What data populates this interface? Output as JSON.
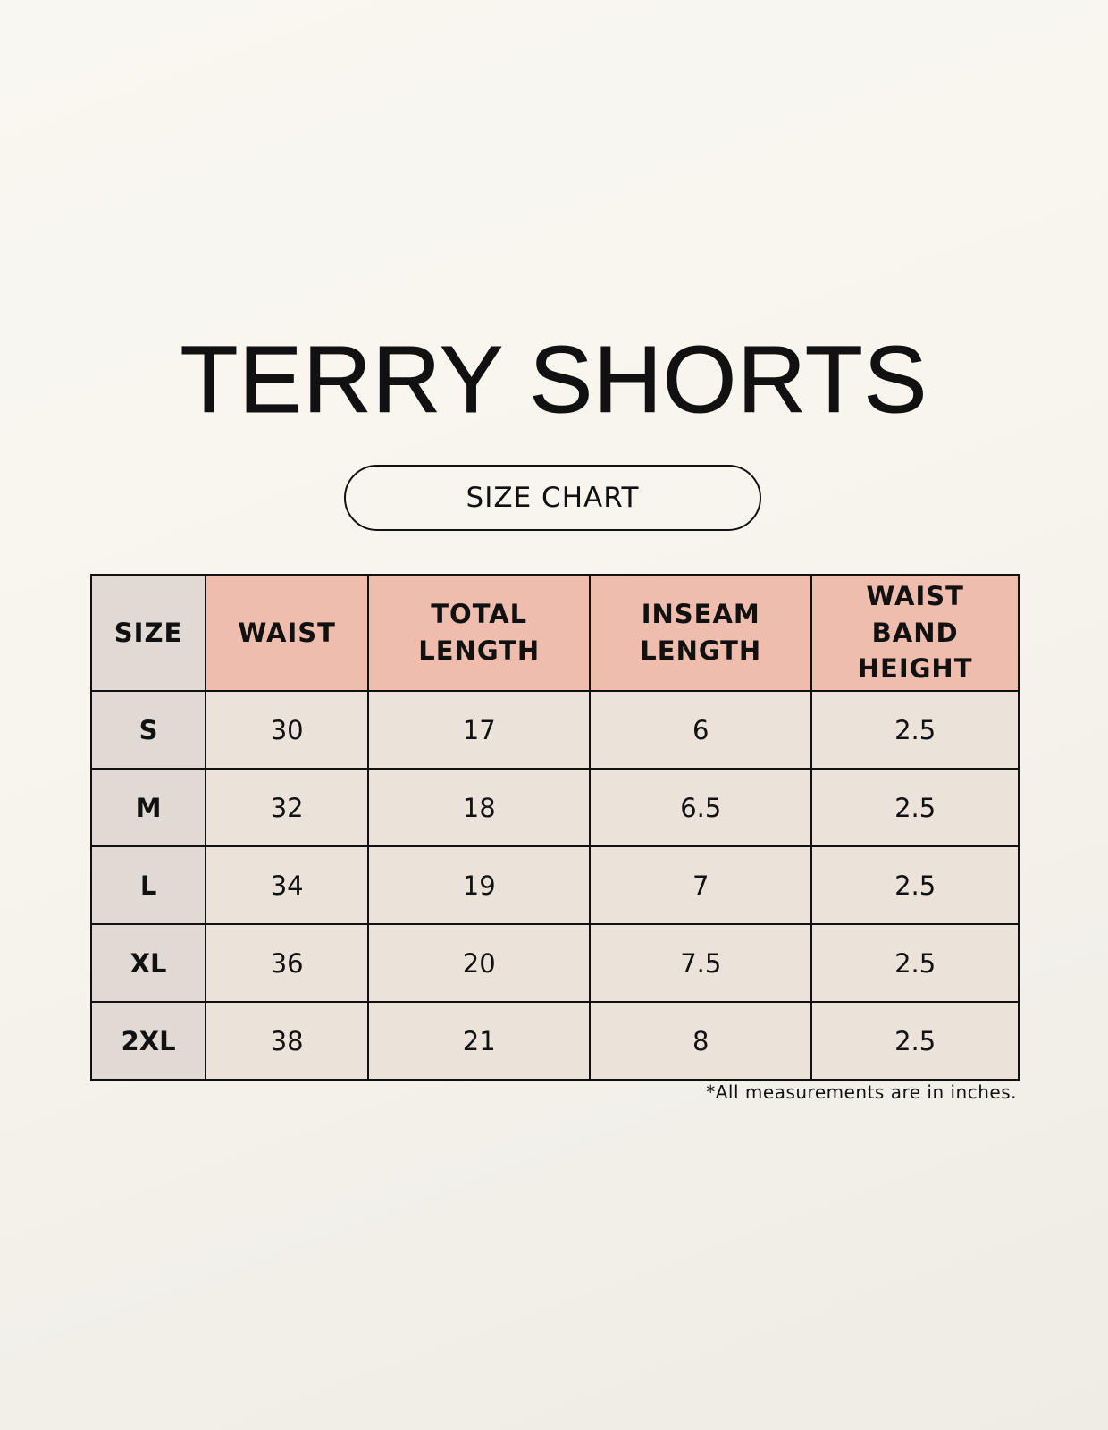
{
  "title": "TERRY SHORTS",
  "subtitle": "SIZE CHART",
  "colors": {
    "header": "#eebdae",
    "size_column": "#e0d9d4",
    "cells": "#ebe3d9",
    "border": "#111111"
  },
  "table": {
    "headers": [
      "SIZE",
      "WAIST",
      "TOTAL LENGTH",
      "INSEAM LENGTH",
      "WAIST BAND HEIGHT"
    ],
    "rows": [
      [
        "S",
        "30",
        "17",
        "6",
        "2.5"
      ],
      [
        "M",
        "32",
        "18",
        "6.5",
        "2.5"
      ],
      [
        "L",
        "34",
        "19",
        "7",
        "2.5"
      ],
      [
        "XL",
        "36",
        "20",
        "7.5",
        "2.5"
      ],
      [
        "2XL",
        "38",
        "21",
        "8",
        "2.5"
      ]
    ]
  },
  "footnote": "*All measurements are in inches."
}
